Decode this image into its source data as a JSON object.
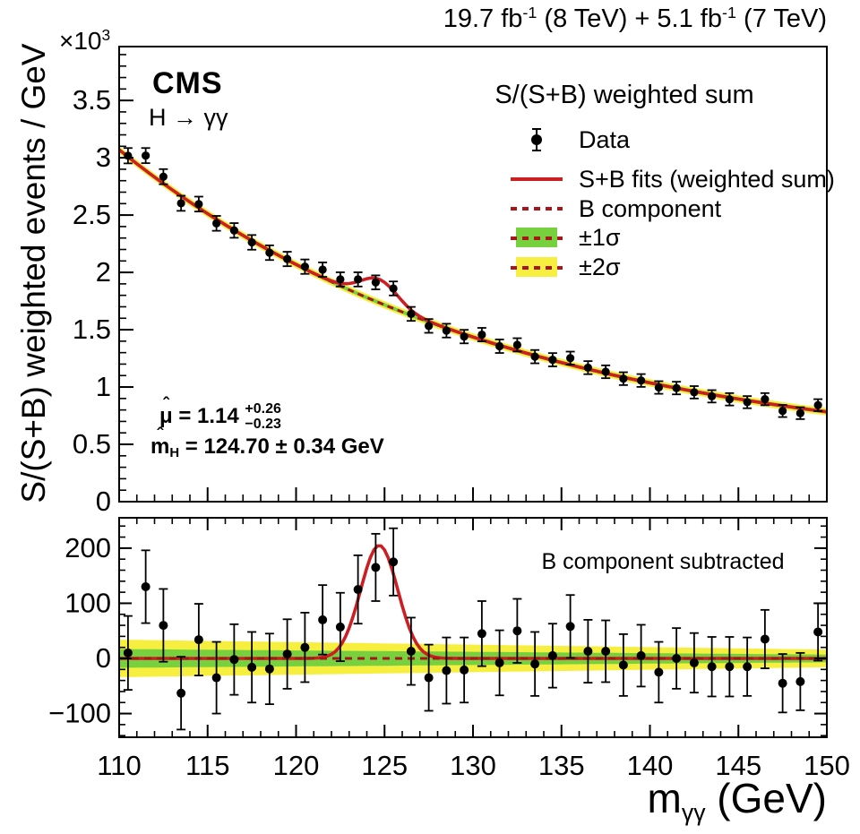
{
  "header": {
    "lumi": {
      "p1": "19.7 fb",
      "s1": "-1",
      "p2": " (8 TeV) + 5.1 fb",
      "s2": "-1",
      "p3": " (7 TeV)"
    }
  },
  "top_panel": {
    "cms": "CMS",
    "process": "H → γγ",
    "pow10": {
      "base": "×10",
      "exp": "3"
    },
    "y_title": "S/(S+B) weighted events / GeV",
    "legend": {
      "title": "S/(S+B) weighted sum",
      "data": "Data",
      "sb_fit": "S+B fits (weighted sum)",
      "b_component": "B component",
      "sigma1": "±1σ",
      "sigma2": "±2σ"
    },
    "stats": {
      "hat": "ˆ",
      "mu": "μ",
      "mu_val": " = 1.14",
      "mu_up": "+0.26",
      "mu_dn": "−0.23",
      "m": "m",
      "m_sub": "H",
      "m_val": " = 124.70 ± 0.34 GeV"
    }
  },
  "bottom_panel": {
    "label": "B component subtracted"
  },
  "x_axis_title": {
    "m": "m",
    "sub": "γγ",
    "rest": " (GeV)"
  },
  "colors": {
    "fit_red": "#cc1f24",
    "dash_red": "#a8161c",
    "band_green": "#77d13f",
    "band_yellow": "#f7ef3f",
    "black": "#000000"
  },
  "chart_data": {
    "type": "scatter",
    "title": "CMS H→γγ S/(S+B) weighted diphoton mass spectrum",
    "x": [
      110.5,
      111.5,
      112.5,
      113.5,
      114.5,
      115.5,
      116.5,
      117.5,
      118.5,
      119.5,
      120.5,
      121.5,
      122.5,
      123.5,
      124.5,
      125.5,
      126.5,
      127.5,
      128.5,
      129.5,
      130.5,
      131.5,
      132.5,
      133.5,
      134.5,
      135.5,
      136.5,
      137.5,
      138.5,
      139.5,
      140.5,
      141.5,
      142.5,
      143.5,
      144.5,
      145.5,
      146.5,
      147.5,
      148.5,
      149.5
    ],
    "series": [
      {
        "name": "Data (S/(S+B) weighted events / GeV, ×10³)",
        "values": [
          3.018,
          3.019,
          2.835,
          2.603,
          2.596,
          2.428,
          2.366,
          2.262,
          2.172,
          2.117,
          2.05,
          2.024,
          1.939,
          1.939,
          1.913,
          1.86,
          1.638,
          1.533,
          1.492,
          1.44,
          1.457,
          1.356,
          1.368,
          1.265,
          1.238,
          1.252,
          1.169,
          1.133,
          1.073,
          1.057,
          0.996,
          0.991,
          0.954,
          0.919,
          0.893,
          0.868,
          0.894,
          0.791,
          0.772,
          0.842
        ]
      },
      {
        "name": "B component subtracted (events)",
        "values": [
          10,
          130,
          60,
          -63,
          34,
          -35,
          -2,
          -16,
          -19,
          8,
          20,
          70,
          57,
          125,
          165,
          175,
          13,
          -35,
          -22,
          -21,
          45,
          -8,
          50,
          -10,
          5,
          58,
          13,
          13,
          -12,
          5,
          -25,
          0,
          -8,
          -15,
          -15,
          -15,
          35,
          -45,
          -42,
          48
        ],
        "errors": [
          67,
          66,
          66,
          66,
          65,
          65,
          64,
          64,
          64,
          63,
          63,
          63,
          62,
          62,
          61,
          61,
          61,
          60,
          60,
          59,
          59,
          59,
          58,
          58,
          58,
          57,
          57,
          56,
          56,
          56,
          55,
          55,
          54,
          54,
          54,
          53,
          53,
          53,
          52,
          52
        ]
      }
    ],
    "fit": {
      "background": {
        "model": "a·exp(-decay·(x-110))+c (×10³ units)",
        "a": 2.72,
        "decay": 0.0459,
        "c": 0.35
      },
      "signal": {
        "amp_events": 205,
        "mean": 124.7,
        "sigma": 1.05
      }
    },
    "bands": {
      "bottom_sigma2_halfwidth_events": [
        34,
        16
      ],
      "bottom_sigma1_halfwidth_events": [
        17,
        7
      ],
      "top_sigma2_halfwidth_k": 0.032,
      "top_sigma1_halfwidth_k": 0.016
    },
    "axes": {
      "x": {
        "min": 110,
        "max": 150,
        "label": "m_γγ (GeV)",
        "major_ticks": [
          110,
          115,
          120,
          125,
          130,
          135,
          140,
          145,
          150
        ],
        "tick_labels": [
          "110",
          "115",
          "120",
          "125",
          "130",
          "135",
          "140",
          "145",
          "150"
        ],
        "minor_step": 1
      },
      "y_top": {
        "min": 0,
        "max": 3.97,
        "label": "S/(S+B) weighted events / GeV",
        "scale": "×10³",
        "major_ticks": [
          0,
          0.5,
          1,
          1.5,
          2,
          2.5,
          3,
          3.5
        ],
        "tick_labels": [
          "0",
          "0.5",
          "1",
          "1.5",
          "2",
          "2.5",
          "3",
          "3.5"
        ],
        "minor_step": 0.1
      },
      "y_bottom": {
        "min": -141,
        "max": 256,
        "label": "B component subtracted",
        "major_ticks": [
          -100,
          0,
          100,
          200
        ],
        "tick_labels": [
          "−100",
          "0",
          "100",
          "200"
        ],
        "minor_step": 20
      }
    },
    "legend_position": "top-right"
  }
}
